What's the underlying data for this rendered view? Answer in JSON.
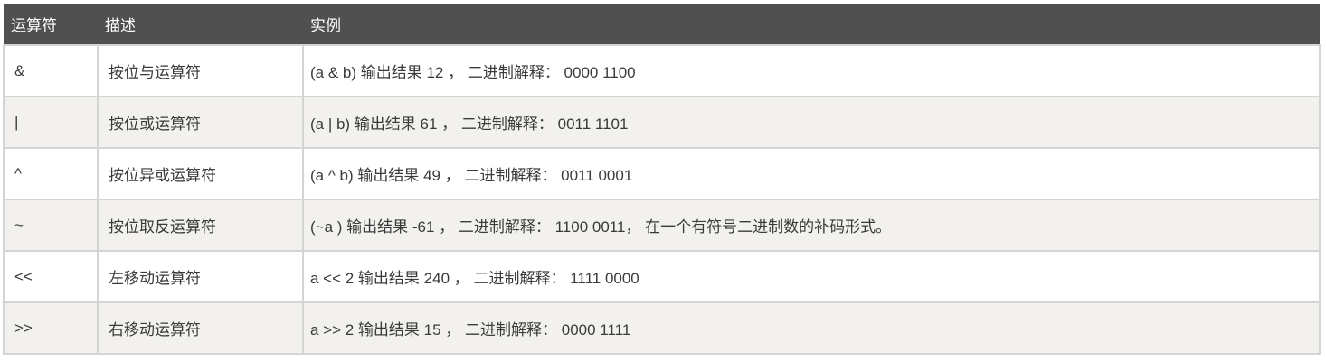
{
  "table": {
    "headers": [
      "运算符",
      "描述",
      "实例"
    ],
    "rows": [
      {
        "operator": "&",
        "description": "按位与运算符",
        "example": "(a & b) 输出结果 12 ， 二进制解释： 0000 1100"
      },
      {
        "operator": "|",
        "description": "按位或运算符",
        "example": "(a | b) 输出结果 61 ， 二进制解释： 0011 1101"
      },
      {
        "operator": "^",
        "description": "按位异或运算符",
        "example": "(a ^ b) 输出结果 49 ， 二进制解释： 0011 0001"
      },
      {
        "operator": "~",
        "description": "按位取反运算符",
        "example": "(~a ) 输出结果 -61 ， 二进制解释： 1100 0011， 在一个有符号二进制数的补码形式。"
      },
      {
        "operator": "<<",
        "description": "左移动运算符",
        "example": "a << 2 输出结果 240 ， 二进制解释： 1111 0000"
      },
      {
        "operator": ">>",
        "description": "右移动运算符",
        "example": "a >> 2 输出结果 15 ， 二进制解释： 0000 1111"
      }
    ]
  },
  "colors": {
    "header_bg": "#505050",
    "header_text": "#ffffff",
    "row_bg": "#ffffff",
    "row_alt_bg": "#f2f1ee",
    "border": "#d4d4d4",
    "body_text": "#3a3a3a"
  }
}
